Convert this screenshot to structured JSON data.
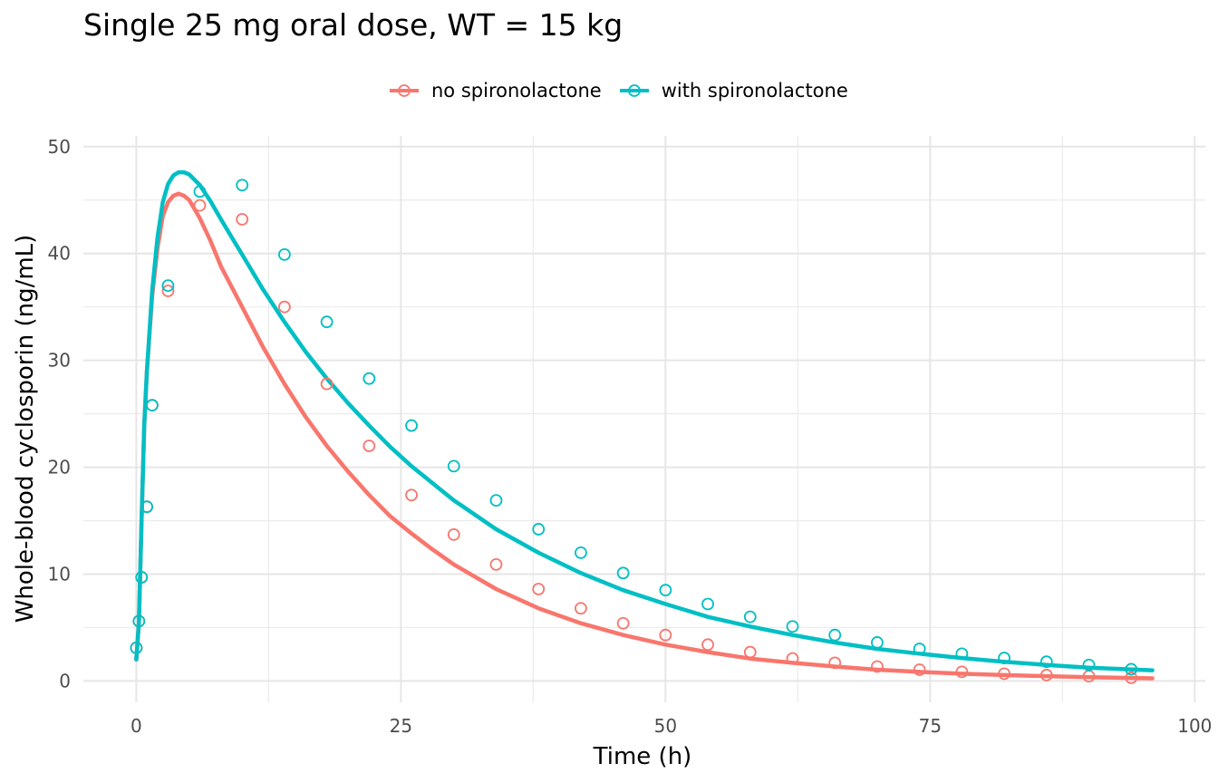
{
  "chart_data": {
    "type": "line",
    "title": "Single 25 mg oral dose, WT = 15 kg",
    "xlabel": "Time (h)",
    "ylabel": "Whole-blood cyclosporin (ng/mL)",
    "xlim": [
      -5,
      101
    ],
    "ylim": [
      -2,
      51
    ],
    "x_ticks": [
      0,
      25,
      50,
      75,
      100
    ],
    "y_ticks": [
      0,
      10,
      20,
      30,
      40,
      50
    ],
    "x_tick_labels": [
      "0",
      "25",
      "50",
      "75",
      "100"
    ],
    "y_tick_labels": [
      "0",
      "10",
      "20",
      "30",
      "40",
      "50"
    ],
    "grid": true,
    "legend_position": "top",
    "series": [
      {
        "name": "no spironolactone",
        "color": "#F8766D",
        "line_x": [
          0,
          0.25,
          0.5,
          0.75,
          1,
          1.5,
          2,
          2.5,
          3,
          3.5,
          4,
          4.5,
          5,
          6,
          7,
          8,
          10,
          12,
          14,
          16,
          18,
          20,
          22,
          24,
          26,
          28,
          30,
          34,
          38,
          42,
          46,
          50,
          54,
          58,
          62,
          66,
          70,
          74,
          78,
          82,
          86,
          90,
          96
        ],
        "line_y": [
          2,
          5.5,
          15,
          24,
          29,
          36,
          40.5,
          43.5,
          44.8,
          45.4,
          45.6,
          45.4,
          45.0,
          43.3,
          41.2,
          38.8,
          35.0,
          31.2,
          27.8,
          24.7,
          22.0,
          19.6,
          17.4,
          15.4,
          13.8,
          12.3,
          10.9,
          8.6,
          6.8,
          5.4,
          4.3,
          3.4,
          2.7,
          2.1,
          1.7,
          1.35,
          1.05,
          0.85,
          0.68,
          0.55,
          0.45,
          0.35,
          0.25
        ],
        "points_x": [
          0,
          0.25,
          0.5,
          1,
          1.5,
          3,
          6,
          10,
          14,
          18,
          22,
          26,
          30,
          34,
          38,
          42,
          46,
          50,
          54,
          58,
          62,
          66,
          70,
          74,
          78,
          82,
          86,
          90,
          94
        ],
        "points_y": [
          3.1,
          5.6,
          9.7,
          16.3,
          25.8,
          36.5,
          44.5,
          43.2,
          35.0,
          27.8,
          22.0,
          17.4,
          13.7,
          10.9,
          8.6,
          6.8,
          5.4,
          4.3,
          3.4,
          2.7,
          2.1,
          1.7,
          1.35,
          1.05,
          0.85,
          0.68,
          0.55,
          0.45,
          0.3
        ]
      },
      {
        "name": "with spironolactone",
        "color": "#00BFC4",
        "line_x": [
          0,
          0.25,
          0.5,
          0.75,
          1,
          1.5,
          2,
          2.5,
          3,
          3.5,
          4,
          4.5,
          5,
          6,
          7,
          8,
          10,
          12,
          14,
          16,
          18,
          20,
          22,
          24,
          26,
          28,
          30,
          34,
          38,
          42,
          46,
          50,
          54,
          58,
          62,
          66,
          70,
          74,
          78,
          82,
          86,
          90,
          96
        ],
        "line_y": [
          2,
          5.5,
          15,
          24,
          29,
          36.5,
          41.5,
          44.8,
          46.5,
          47.3,
          47.6,
          47.6,
          47.4,
          46.4,
          44.9,
          43.2,
          39.9,
          36.6,
          33.6,
          30.8,
          28.3,
          26.0,
          23.9,
          21.9,
          20.1,
          18.5,
          16.9,
          14.2,
          12.0,
          10.1,
          8.5,
          7.2,
          6.0,
          5.1,
          4.3,
          3.6,
          3.0,
          2.55,
          2.15,
          1.8,
          1.5,
          1.25,
          1.0
        ],
        "points_x": [
          0,
          0.25,
          0.5,
          1,
          1.5,
          3,
          6,
          10,
          14,
          18,
          22,
          26,
          30,
          34,
          38,
          42,
          46,
          50,
          54,
          58,
          62,
          66,
          70,
          74,
          78,
          82,
          86,
          90,
          94
        ],
        "points_y": [
          3.1,
          5.6,
          9.7,
          16.3,
          25.8,
          37.0,
          45.8,
          46.4,
          39.9,
          33.6,
          28.3,
          23.9,
          20.1,
          16.9,
          14.2,
          12.0,
          10.1,
          8.5,
          7.2,
          6.0,
          5.1,
          4.3,
          3.6,
          3.0,
          2.55,
          2.15,
          1.8,
          1.5,
          1.1
        ]
      }
    ]
  }
}
